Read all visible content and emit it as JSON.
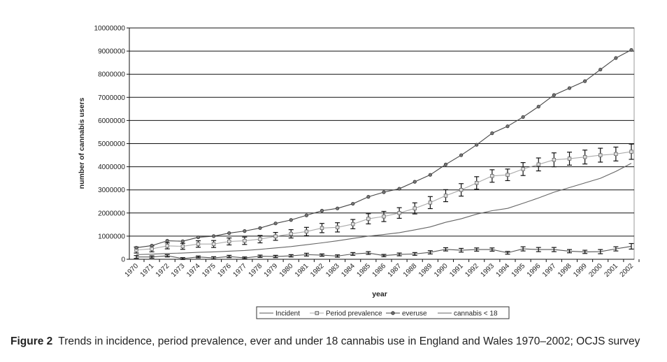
{
  "chart_data": {
    "type": "line",
    "xlabel": "year",
    "ylabel": "number of cannabis users",
    "ylim": [
      0,
      10000000
    ],
    "yticks": [
      "0",
      "1000000",
      "2000000",
      "3000000",
      "4000000",
      "5000000",
      "6000000",
      "7000000",
      "8000000",
      "9000000",
      "10000000"
    ],
    "grid": true,
    "legend": "bottom",
    "x": [
      1970,
      1971,
      1972,
      1973,
      1974,
      1975,
      1976,
      1977,
      1978,
      1979,
      1980,
      1981,
      1982,
      1983,
      1984,
      1985,
      1986,
      1987,
      1988,
      1989,
      1990,
      1991,
      1992,
      1993,
      1994,
      1995,
      1996,
      1997,
      1998,
      1999,
      2000,
      2001,
      2002
    ],
    "series": [
      {
        "name": "Incident",
        "marker": "none",
        "error_bars": true,
        "color": "#555555",
        "values": [
          100000,
          100000,
          150000,
          30000,
          100000,
          60000,
          120000,
          60000,
          130000,
          120000,
          150000,
          200000,
          180000,
          140000,
          230000,
          270000,
          160000,
          210000,
          230000,
          300000,
          430000,
          390000,
          420000,
          420000,
          280000,
          450000,
          420000,
          420000,
          350000,
          320000,
          330000,
          450000,
          560000
        ],
        "errors": [
          60000,
          50000,
          50000,
          40000,
          40000,
          50000,
          50000,
          40000,
          50000,
          50000,
          50000,
          60000,
          50000,
          50000,
          60000,
          60000,
          50000,
          60000,
          60000,
          70000,
          70000,
          80000,
          70000,
          70000,
          60000,
          90000,
          90000,
          90000,
          70000,
          70000,
          90000,
          90000,
          120000
        ]
      },
      {
        "name": "Period prevalence",
        "marker": "square",
        "error_bars": true,
        "color": "#aaaaaa",
        "values": [
          400000,
          450000,
          580000,
          560000,
          660000,
          660000,
          770000,
          800000,
          870000,
          990000,
          1100000,
          1200000,
          1350000,
          1380000,
          1520000,
          1750000,
          1850000,
          2000000,
          2200000,
          2450000,
          2750000,
          3000000,
          3300000,
          3600000,
          3650000,
          3900000,
          4100000,
          4300000,
          4350000,
          4420000,
          4500000,
          4550000,
          4650000
        ],
        "errors": [
          130000,
          130000,
          130000,
          130000,
          140000,
          150000,
          150000,
          160000,
          160000,
          170000,
          180000,
          180000,
          200000,
          200000,
          200000,
          220000,
          220000,
          230000,
          240000,
          260000,
          260000,
          270000,
          270000,
          270000,
          250000,
          280000,
          280000,
          300000,
          280000,
          300000,
          300000,
          300000,
          330000
        ]
      },
      {
        "name": "everuse",
        "marker": "circle",
        "error_bars": false,
        "color": "#444444",
        "values": [
          500000,
          590000,
          800000,
          780000,
          950000,
          1000000,
          1130000,
          1220000,
          1350000,
          1550000,
          1700000,
          1900000,
          2100000,
          2200000,
          2400000,
          2700000,
          2900000,
          3050000,
          3350000,
          3650000,
          4100000,
          4500000,
          4950000,
          5450000,
          5750000,
          6150000,
          6600000,
          7100000,
          7400000,
          7700000,
          8200000,
          8700000,
          9050000
        ]
      },
      {
        "name": "cannabis < 18",
        "marker": "none",
        "error_bars": false,
        "color": "#666666",
        "values": [
          200000,
          220000,
          250000,
          270000,
          300000,
          320000,
          350000,
          380000,
          430000,
          490000,
          550000,
          630000,
          710000,
          800000,
          900000,
          1000000,
          1070000,
          1150000,
          1270000,
          1400000,
          1600000,
          1750000,
          1950000,
          2100000,
          2200000,
          2420000,
          2650000,
          2900000,
          3100000,
          3300000,
          3500000,
          3800000,
          4150000
        ]
      }
    ]
  },
  "caption": {
    "label": "Figure 2",
    "text": "Trends in incidence, period prevalence, ever and under 18 cannabis use in England and Wales 1970–2002; OCJS survey"
  }
}
